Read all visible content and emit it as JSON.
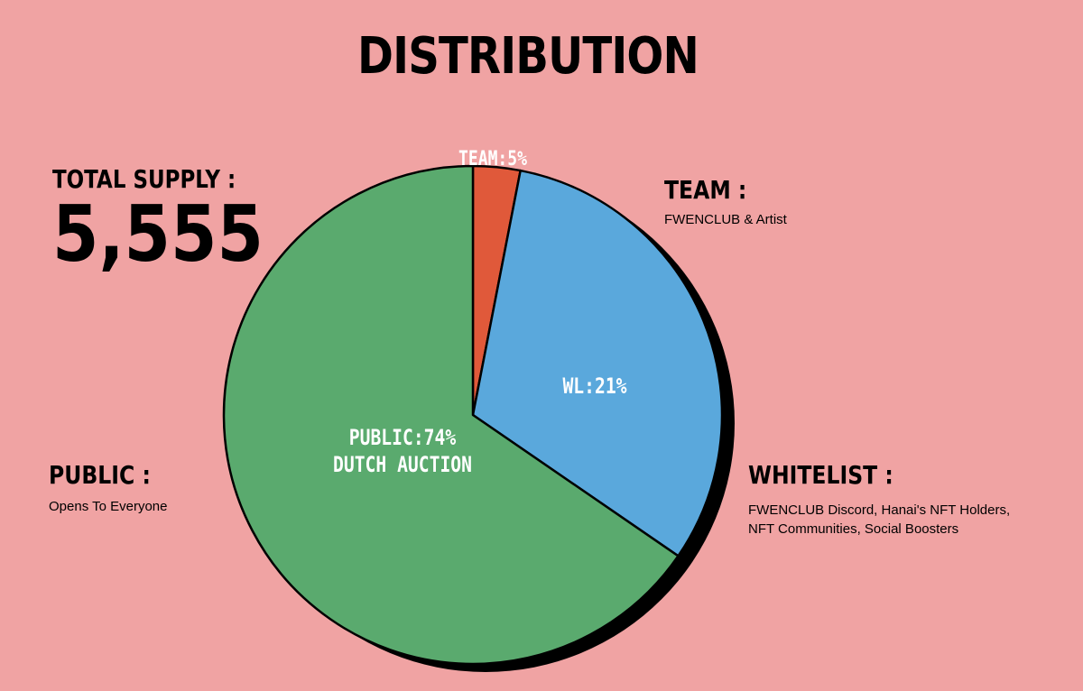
{
  "background": "#f0a3a3",
  "title": "DISTRIBUTION",
  "supply": {
    "label": "TOTAL SUPPLY :",
    "value": "5,555"
  },
  "legend": {
    "team": {
      "heading": "TEAM :",
      "desc": "FWENCLUB & Artist"
    },
    "public": {
      "heading": "PUBLIC :",
      "desc": "Opens To Everyone"
    },
    "whitelist": {
      "heading": "WHITELIST :",
      "desc_lines": [
        "FWENCLUB Discord, Hanai's NFT Holders,",
        "NFT Communities, Social Boosters"
      ]
    }
  },
  "chart_data": {
    "type": "pie",
    "title": "DISTRIBUTION",
    "start_angle_deg": 0,
    "direction": "clockwise",
    "slices": [
      {
        "name": "TEAM",
        "value": 5,
        "color": "#e0593a",
        "label_lines": [
          "TEAM:5%"
        ]
      },
      {
        "name": "WL",
        "value": 21,
        "color": "#5aa8dc",
        "label_lines": [
          "WL:21%"
        ]
      },
      {
        "name": "PUBLIC",
        "value": 74,
        "color": "#5aaa6e",
        "label_lines": [
          "PUBLIC:74%",
          "DUTCH AUCTION"
        ]
      }
    ]
  }
}
